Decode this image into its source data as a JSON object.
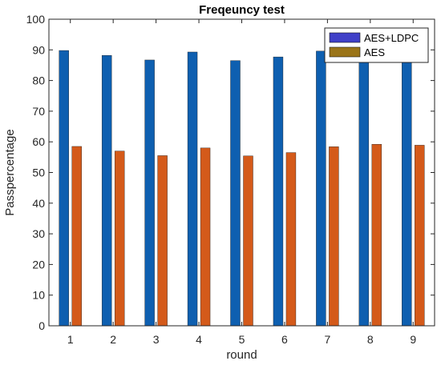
{
  "chart_data": {
    "type": "bar",
    "title": "Freqeuncy test",
    "xlabel": "round",
    "ylabel": "Passpercentage",
    "categories": [
      "1",
      "2",
      "3",
      "4",
      "5",
      "6",
      "7",
      "8",
      "9"
    ],
    "series": [
      {
        "name": "AES+LDPC",
        "values": [
          89.8,
          88.2,
          86.7,
          89.3,
          86.5,
          87.7,
          89.6,
          89.8,
          88.7
        ]
      },
      {
        "name": "AES",
        "values": [
          58.5,
          57.0,
          55.5,
          58.0,
          55.4,
          56.5,
          58.4,
          59.2,
          58.9
        ]
      }
    ],
    "ylim": [
      0,
      100
    ],
    "yticks": [
      0,
      10,
      20,
      30,
      40,
      50,
      60,
      70,
      80,
      90,
      100
    ],
    "grid": false,
    "legend_position": "top-right",
    "colors": {
      "bar_series1": "#0e5fb0",
      "bar_series2": "#d45a1a",
      "legend_swatch1": "#4040c8",
      "legend_swatch2": "#9a7418",
      "axis": "#262626"
    }
  }
}
